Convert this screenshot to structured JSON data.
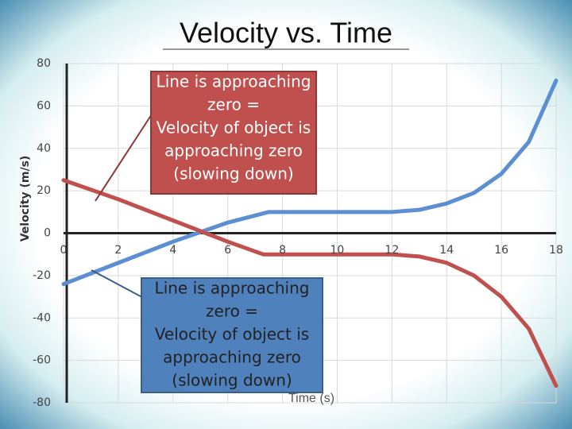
{
  "chart_data": {
    "type": "line",
    "title": "Velocity vs. Time",
    "xlabel": "Time (s)",
    "ylabel": "Velocity (m/s)",
    "xlim": [
      0,
      18
    ],
    "ylim": [
      -80,
      80
    ],
    "xticks": [
      0,
      2,
      4,
      6,
      8,
      10,
      12,
      14,
      16,
      18
    ],
    "yticks": [
      -80,
      -60,
      -40,
      -20,
      0,
      20,
      40,
      60,
      80
    ],
    "grid": true,
    "series": [
      {
        "color": "#5b8fd1",
        "x": [
          0,
          2,
          4,
          6,
          7.5,
          10,
          12,
          13,
          14,
          15,
          16,
          17,
          18
        ],
        "values": [
          -24,
          -14,
          -4,
          5,
          10,
          10,
          10,
          11,
          14,
          19,
          28,
          43,
          72
        ]
      },
      {
        "color": "#c0504d",
        "x": [
          0,
          2,
          4,
          5,
          6,
          7.3,
          10,
          12,
          13,
          14,
          15,
          16,
          17,
          18
        ],
        "values": [
          25,
          16,
          6,
          1,
          -4,
          -10,
          -10,
          -10,
          -11,
          -14,
          -20,
          -30,
          -45,
          -72
        ]
      }
    ],
    "annotations": [
      {
        "color": "#c0504d",
        "lines": [
          "Line is approaching",
          "zero =",
          "Velocity of object is",
          "approaching zero",
          "(slowing down)"
        ]
      },
      {
        "color": "#4f81bd",
        "lines": [
          "Line is approaching",
          "zero =",
          "Velocity of object is",
          "approaching zero",
          "(slowing down)"
        ]
      }
    ]
  }
}
